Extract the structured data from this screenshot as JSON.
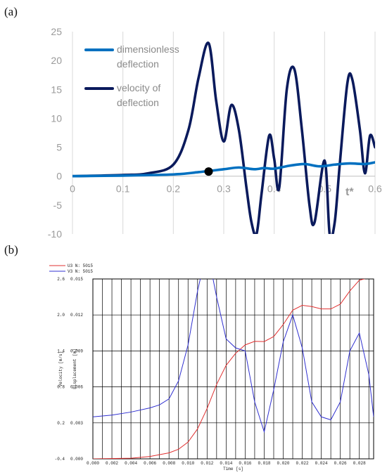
{
  "chart_data": [
    {
      "type": "line",
      "panel_label": "(a)",
      "annotation": "t*",
      "title": "",
      "xlabel": "",
      "ylabel": "",
      "xlim": [
        0,
        0.6
      ],
      "ylim": [
        -10,
        25
      ],
      "x_ticks": [
        "0",
        "0.1",
        "0.2",
        "0.3",
        "0.4",
        "0.5",
        "0.6"
      ],
      "y_ticks": [
        "25",
        "20",
        "15",
        "10",
        "5",
        "0",
        "-5",
        "-10"
      ],
      "grid": "vertical",
      "legend": "top-left",
      "marker_point": {
        "x": 0.27,
        "y": 0.8
      },
      "series": [
        {
          "name": "dimensionless deflection",
          "color": "#0070C0",
          "x": [
            0,
            0.1,
            0.2,
            0.25,
            0.3,
            0.33,
            0.36,
            0.38,
            0.4,
            0.43,
            0.46,
            0.49,
            0.52,
            0.55,
            0.58,
            0.6
          ],
          "y": [
            0,
            0.1,
            0.3,
            0.7,
            1.2,
            1.5,
            1.2,
            1.4,
            1.3,
            1.8,
            2.1,
            1.7,
            2.0,
            2.2,
            2.1,
            2.4
          ]
        },
        {
          "name": "velocity of deflection",
          "color": "#0A1A5C",
          "x": [
            0,
            0.1,
            0.15,
            0.2,
            0.23,
            0.25,
            0.27,
            0.285,
            0.3,
            0.315,
            0.33,
            0.345,
            0.355,
            0.365,
            0.375,
            0.39,
            0.4,
            0.41,
            0.425,
            0.44,
            0.455,
            0.47,
            0.48,
            0.5,
            0.51,
            0.52,
            0.53,
            0.545,
            0.555,
            0.57,
            0.58,
            0.59,
            0.6
          ],
          "y": [
            0,
            0.2,
            0.5,
            2,
            8,
            17,
            23,
            13,
            6,
            12.3,
            8,
            -2,
            -8,
            -10,
            -3,
            7,
            3,
            -2,
            15,
            18.5,
            8,
            -5,
            -8,
            2.7,
            -10,
            -8,
            2,
            16,
            16.7,
            8,
            0.5,
            7,
            5
          ]
        }
      ]
    },
    {
      "type": "line",
      "panel_label": "(b)",
      "title": "",
      "xlabel": "Time [s]",
      "ylabel_left": "Velocity [m/s]",
      "ylabel_right": "Displacement [m]",
      "xlim": [
        0,
        0.0295
      ],
      "ylim_left": [
        -0.4,
        2.6
      ],
      "ylim_right": [
        0,
        0.015
      ],
      "x_ticks": [
        "0.000",
        "0.002",
        "0.004",
        "0.006",
        "0.008",
        "0.010",
        "0.012",
        "0.014",
        "0.016",
        "0.018",
        "0.020",
        "0.022",
        "0.024",
        "0.026",
        "0.028"
      ],
      "y_ticks_left": [
        "2.6",
        "2.0",
        "1.4",
        "0.8",
        "0.2",
        "-0.4"
      ],
      "y_ticks_right": [
        "0.015",
        "0.012",
        "0.009",
        "0.006",
        "0.003",
        "0.000"
      ],
      "grid": "on",
      "legend": "top-left",
      "series": [
        {
          "name": "U3 N: 5015",
          "color": "#e03030",
          "axis": "right",
          "x": [
            0,
            0.004,
            0.006,
            0.008,
            0.009,
            0.01,
            0.011,
            0.012,
            0.013,
            0.014,
            0.015,
            0.016,
            0.017,
            0.018,
            0.019,
            0.02,
            0.021,
            0.022,
            0.023,
            0.024,
            0.025,
            0.026,
            0.027,
            0.028,
            0.0295
          ],
          "y": [
            0,
            5e-05,
            0.0002,
            0.0005,
            0.0008,
            0.0014,
            0.0025,
            0.0042,
            0.0062,
            0.0078,
            0.0088,
            0.0095,
            0.0098,
            0.00978,
            0.0102,
            0.0112,
            0.0124,
            0.0128,
            0.0127,
            0.0125,
            0.0125,
            0.0129,
            0.014,
            0.0149,
            0.0152
          ]
        },
        {
          "name": "V3 N: 5015",
          "color": "#3030d0",
          "axis": "left",
          "x": [
            0,
            0.002,
            0.004,
            0.006,
            0.007,
            0.008,
            0.009,
            0.01,
            0.011,
            0.012,
            0.013,
            0.014,
            0.015,
            0.016,
            0.017,
            0.018,
            0.019,
            0.02,
            0.021,
            0.022,
            0.023,
            0.024,
            0.025,
            0.026,
            0.027,
            0.028,
            0.029,
            0.0295
          ],
          "y": [
            0.3,
            0.33,
            0.38,
            0.45,
            0.5,
            0.6,
            0.9,
            1.5,
            2.4,
            3.1,
            2.3,
            1.6,
            1.45,
            1.4,
            0.55,
            0.05,
            0.75,
            1.55,
            2.0,
            1.45,
            0.55,
            0.3,
            0.25,
            0.55,
            1.4,
            1.7,
            1.0,
            0.3
          ]
        }
      ]
    }
  ]
}
